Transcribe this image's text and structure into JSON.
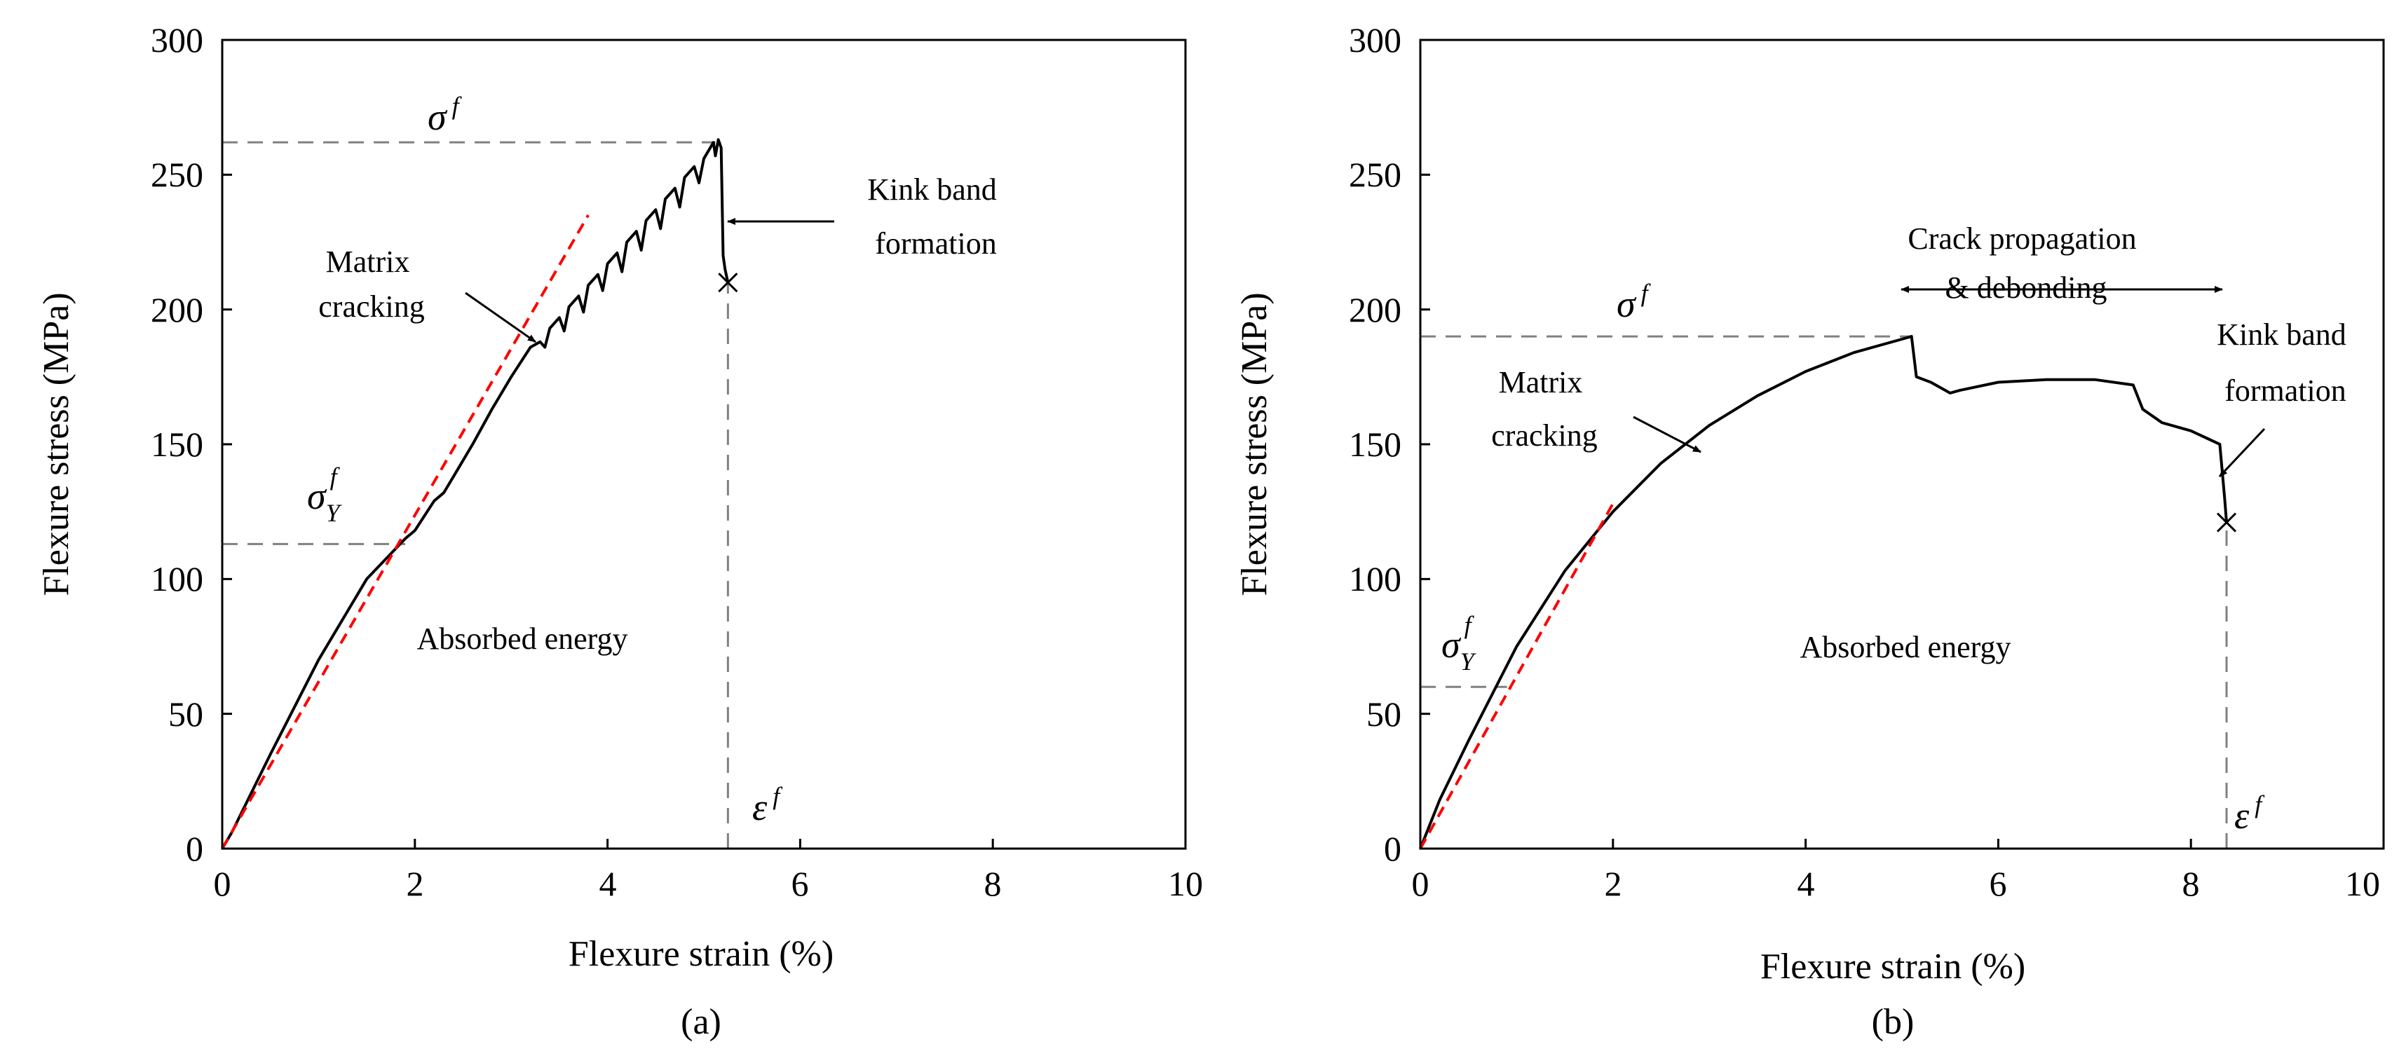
{
  "chart_data": [
    {
      "type": "line",
      "panel_label": "(a)",
      "xlabel": "Flexure strain (%)",
      "ylabel": "Flexure stress (MPa)",
      "xlim": [
        0,
        10
      ],
      "ylim": [
        0,
        300
      ],
      "xticks": [
        "0",
        "2",
        "4",
        "6",
        "8",
        "10"
      ],
      "yticks": [
        "0",
        "50",
        "100",
        "150",
        "200",
        "250",
        "300"
      ],
      "grid": false,
      "series": [
        {
          "name": "stress-strain",
          "color": "#000000",
          "x": [
            0,
            0.1,
            0.5,
            1.0,
            1.5,
            1.9,
            2.0,
            2.2,
            2.3,
            2.4,
            2.6,
            2.8,
            3.0,
            3.2,
            3.3,
            3.35,
            3.4,
            3.5,
            3.55,
            3.6,
            3.7,
            3.75,
            3.8,
            3.9,
            3.95,
            4.0,
            4.1,
            4.15,
            4.2,
            4.3,
            4.35,
            4.4,
            4.5,
            4.55,
            4.6,
            4.7,
            4.75,
            4.8,
            4.9,
            4.95,
            5.0,
            5.05,
            5.1,
            5.12,
            5.15,
            5.18,
            5.2,
            5.22,
            5.25
          ],
          "y": [
            0,
            6,
            35,
            70,
            100,
            115,
            118,
            129,
            132,
            138,
            150,
            163,
            175,
            186,
            188,
            186,
            193,
            197,
            192,
            201,
            205,
            199,
            209,
            213,
            207,
            217,
            221,
            214,
            225,
            229,
            222,
            233,
            237,
            230,
            241,
            245,
            238,
            249,
            253,
            247,
            256,
            259,
            262,
            257,
            263,
            260,
            220,
            215,
            210
          ]
        },
        {
          "name": "linear-fit",
          "color": "#ff0000",
          "dashed": true,
          "x": [
            0,
            3.8
          ],
          "y": [
            0,
            235
          ]
        }
      ],
      "reference_lines": [
        {
          "orientation": "horizontal",
          "y": 262,
          "x_from": 0,
          "x_to": 5.12
        },
        {
          "orientation": "horizontal",
          "y": 113,
          "x_from": 0,
          "x_to": 1.9
        },
        {
          "orientation": "vertical",
          "x": 5.25,
          "y_from": 0,
          "y_to": 210
        }
      ],
      "failure_point": {
        "x": 5.25,
        "y": 210
      },
      "annotations": {
        "sigma_f": {
          "symbol": "σ",
          "superscript": "f"
        },
        "sigma_y": {
          "symbol": "σ",
          "superscript": "f",
          "subscript": "Y"
        },
        "epsilon_f": {
          "symbol": "ε",
          "superscript": "f"
        },
        "matrix_cracking": [
          "Matrix",
          "cracking"
        ],
        "kink_band": [
          "Kink band",
          "formation"
        ],
        "absorbed": "Absorbed energy"
      }
    },
    {
      "type": "line",
      "panel_label": "(b)",
      "xlabel": "Flexure strain (%)",
      "ylabel": "Flexure stress (MPa)",
      "xlim": [
        0,
        10
      ],
      "ylim": [
        0,
        300
      ],
      "xticks": [
        "0",
        "2",
        "4",
        "6",
        "8",
        "10"
      ],
      "yticks": [
        "0",
        "50",
        "100",
        "150",
        "200",
        "250",
        "300"
      ],
      "grid": false,
      "series": [
        {
          "name": "stress-strain",
          "color": "#000000",
          "x": [
            0,
            0.2,
            0.5,
            1.0,
            1.5,
            2.0,
            2.5,
            3.0,
            3.5,
            4.0,
            4.5,
            5.0,
            5.1,
            5.15,
            5.3,
            5.5,
            5.6,
            6.0,
            6.5,
            7.0,
            7.4,
            7.5,
            7.7,
            8.0,
            8.3,
            8.35,
            8.37
          ],
          "y": [
            0,
            18,
            40,
            75,
            103,
            125,
            143,
            157,
            168,
            177,
            184,
            189,
            190,
            175,
            173,
            169,
            170,
            173,
            174,
            174,
            172,
            163,
            158,
            155,
            150,
            130,
            121
          ]
        },
        {
          "name": "linear-fit",
          "color": "#ff0000",
          "dashed": true,
          "x": [
            0,
            2.0
          ],
          "y": [
            0,
            128
          ]
        }
      ],
      "reference_lines": [
        {
          "orientation": "horizontal",
          "y": 190,
          "x_from": 0,
          "x_to": 5.1
        },
        {
          "orientation": "horizontal",
          "y": 60,
          "x_from": 0,
          "x_to": 0.9
        },
        {
          "orientation": "vertical",
          "x": 8.37,
          "y_from": 0,
          "y_to": 121
        }
      ],
      "failure_point": {
        "x": 8.37,
        "y": 121
      },
      "annotations": {
        "sigma_f": {
          "symbol": "σ",
          "superscript": "f"
        },
        "sigma_y": {
          "symbol": "σ",
          "superscript": "f",
          "subscript": "Y"
        },
        "epsilon_f": {
          "symbol": "ε",
          "superscript": "f"
        },
        "matrix_cracking": [
          "Matrix",
          "cracking"
        ],
        "kink_band": [
          "Kink band",
          "formation"
        ],
        "crack_propagation": [
          "Crack propagation",
          "& debonding"
        ],
        "absorbed": "Absorbed energy"
      }
    }
  ]
}
